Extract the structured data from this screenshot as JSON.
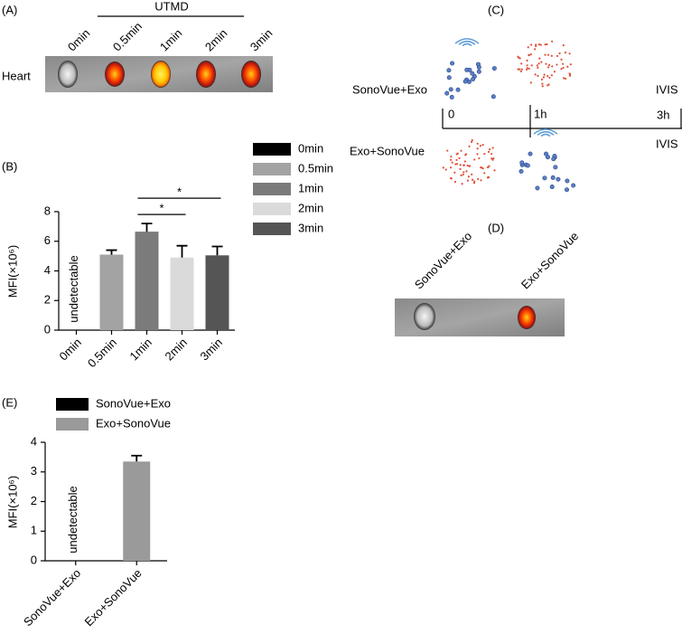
{
  "panels": [
    "(A)",
    "(B)",
    "(C)",
    "(D)",
    "(E)"
  ],
  "panel_a": {
    "group_label": "UTMD",
    "columns": [
      "0min",
      "0.5min",
      "1min",
      "2min",
      "3min"
    ],
    "row_label": "Heart"
  },
  "panel_c": {
    "rows": [
      "SonoVue+Exo",
      "Exo+SonoVue"
    ],
    "timeline": [
      "0",
      "1h",
      "3h"
    ],
    "end_labels": [
      "IVIS",
      "IVIS"
    ]
  },
  "panel_d": {
    "columns": [
      "SonoVue+Exo",
      "Exo+SonoVue"
    ]
  },
  "chart_data": [
    {
      "type": "bar",
      "y_label": "MFI(×10⁶)",
      "categories": [
        "0min",
        "0.5min",
        "1min",
        "2min",
        "3min"
      ],
      "values": [
        null,
        5.1,
        6.65,
        4.9,
        5.05
      ],
      "errors": [
        null,
        0.3,
        0.55,
        0.8,
        0.6
      ],
      "colors": [
        "#000000",
        "#a3a3a3",
        "#7b7b7b",
        "#dadada",
        "#555555"
      ],
      "annotation": "undetectable",
      "ylim": [
        0,
        8
      ],
      "yticks": [
        0,
        2,
        4,
        6,
        8
      ],
      "significance": [
        {
          "from": "1min",
          "to": "2min",
          "label": "*"
        },
        {
          "from": "1min",
          "to": "3min",
          "label": "*"
        }
      ]
    },
    {
      "type": "bar",
      "y_label": "MFI(×10⁶)",
      "categories": [
        "SonoVue+Exo",
        "Exo+SonoVue"
      ],
      "values": [
        null,
        3.35
      ],
      "errors": [
        null,
        0.2
      ],
      "colors": [
        "#000000",
        "#9a9a9a"
      ],
      "annotation": "undetectable",
      "ylim": [
        0,
        4
      ],
      "yticks": [
        0,
        1,
        2,
        3,
        4
      ]
    }
  ]
}
